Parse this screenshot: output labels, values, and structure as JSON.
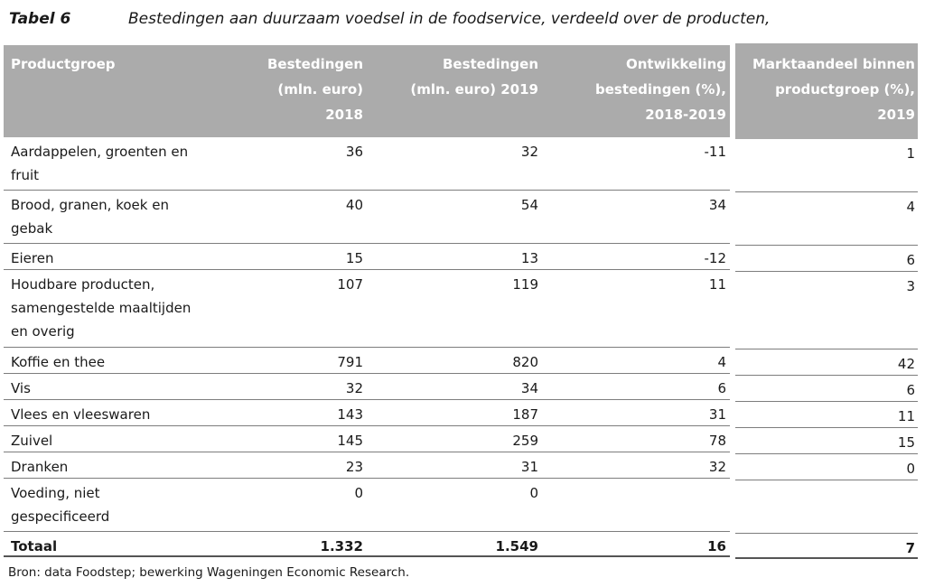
{
  "caption": {
    "label": "Tabel 6",
    "title": "Bestedingen aan duurzaam voedsel in de foodservice, verdeeld over de producten,"
  },
  "table": {
    "header": {
      "productgroep": [
        "Productgroep"
      ],
      "b2018": [
        "Bestedingen",
        "(mln. euro)",
        "2018"
      ],
      "b2019": [
        "Bestedingen",
        "(mln. euro) 2019"
      ],
      "ontwikkeling": [
        "Ontwikkeling",
        "bestedingen (%),",
        "2018-2019"
      ],
      "marktaandeel": [
        "Marktaandeel binnen",
        "productgroep (%),",
        "2019"
      ]
    },
    "rows": [
      {
        "product_lines": [
          "Aardappelen, groenten en",
          "fruit"
        ],
        "b2018": "36",
        "b2019": "32",
        "ontwikkeling": "-11",
        "marktaandeel": "1"
      },
      {
        "product_lines": [
          "Brood, granen, koek en",
          "gebak"
        ],
        "b2018": "40",
        "b2019": "54",
        "ontwikkeling": "34",
        "marktaandeel": "4"
      },
      {
        "product_lines": [
          "Eieren"
        ],
        "b2018": "15",
        "b2019": "13",
        "ontwikkeling": "-12",
        "marktaandeel": "6"
      },
      {
        "product_lines": [
          "Houdbare producten,",
          "samengestelde maaltijden",
          "en overig"
        ],
        "b2018": "107",
        "b2019": "119",
        "ontwikkeling": "11",
        "marktaandeel": "3"
      },
      {
        "product_lines": [
          "Koffie en thee"
        ],
        "b2018": "791",
        "b2019": "820",
        "ontwikkeling": "4",
        "marktaandeel": "42"
      },
      {
        "product_lines": [
          "Vis"
        ],
        "b2018": "32",
        "b2019": "34",
        "ontwikkeling": "6",
        "marktaandeel": "6"
      },
      {
        "product_lines": [
          "Vlees en vleeswaren"
        ],
        "b2018": "143",
        "b2019": "187",
        "ontwikkeling": "31",
        "marktaandeel": "11"
      },
      {
        "product_lines": [
          "Zuivel"
        ],
        "b2018": "145",
        "b2019": "259",
        "ontwikkeling": "78",
        "marktaandeel": "15"
      },
      {
        "product_lines": [
          "Dranken"
        ],
        "b2018": "23",
        "b2019": "31",
        "ontwikkeling": "32",
        "marktaandeel": "0"
      },
      {
        "product_lines": [
          "Voeding, niet",
          "gespecificeerd"
        ],
        "b2018": "0",
        "b2019": "0",
        "ontwikkeling": "",
        "marktaandeel": ""
      }
    ],
    "total": {
      "product_lines": [
        "Totaal"
      ],
      "b2018": "1.332",
      "b2019": "1.549",
      "ontwikkeling": "16",
      "marktaandeel": "7"
    }
  },
  "source": "Bron: data Foodstep; bewerking Wageningen Economic Research.",
  "colors": {
    "header_bg": "#ababab",
    "header_text": "#ffffff",
    "row_line": "#7d7d7d",
    "total_line": "#555555",
    "text": "#1a1a1a"
  }
}
